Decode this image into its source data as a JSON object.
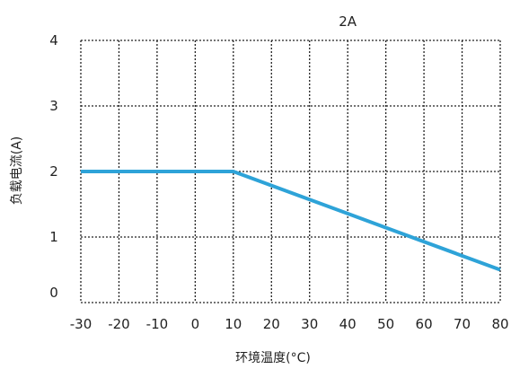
{
  "chart_data": {
    "type": "line",
    "title": "",
    "xlabel": "环境温度(°C)",
    "ylabel": "负载电流(A)",
    "xlim": [
      -30,
      80
    ],
    "ylim": [
      0,
      4
    ],
    "x_ticks": [
      "-30",
      "-20",
      "-10",
      "0",
      "10",
      "20",
      "30",
      "40",
      "50",
      "60",
      "70",
      "80"
    ],
    "y_ticks": [
      "0",
      "1",
      "2",
      "3",
      "4"
    ],
    "grid": true,
    "series": [
      {
        "name": "2A",
        "color": "#2ea3d8",
        "x": [
          -30,
          10,
          80
        ],
        "y": [
          2,
          2,
          0.5
        ]
      }
    ]
  }
}
